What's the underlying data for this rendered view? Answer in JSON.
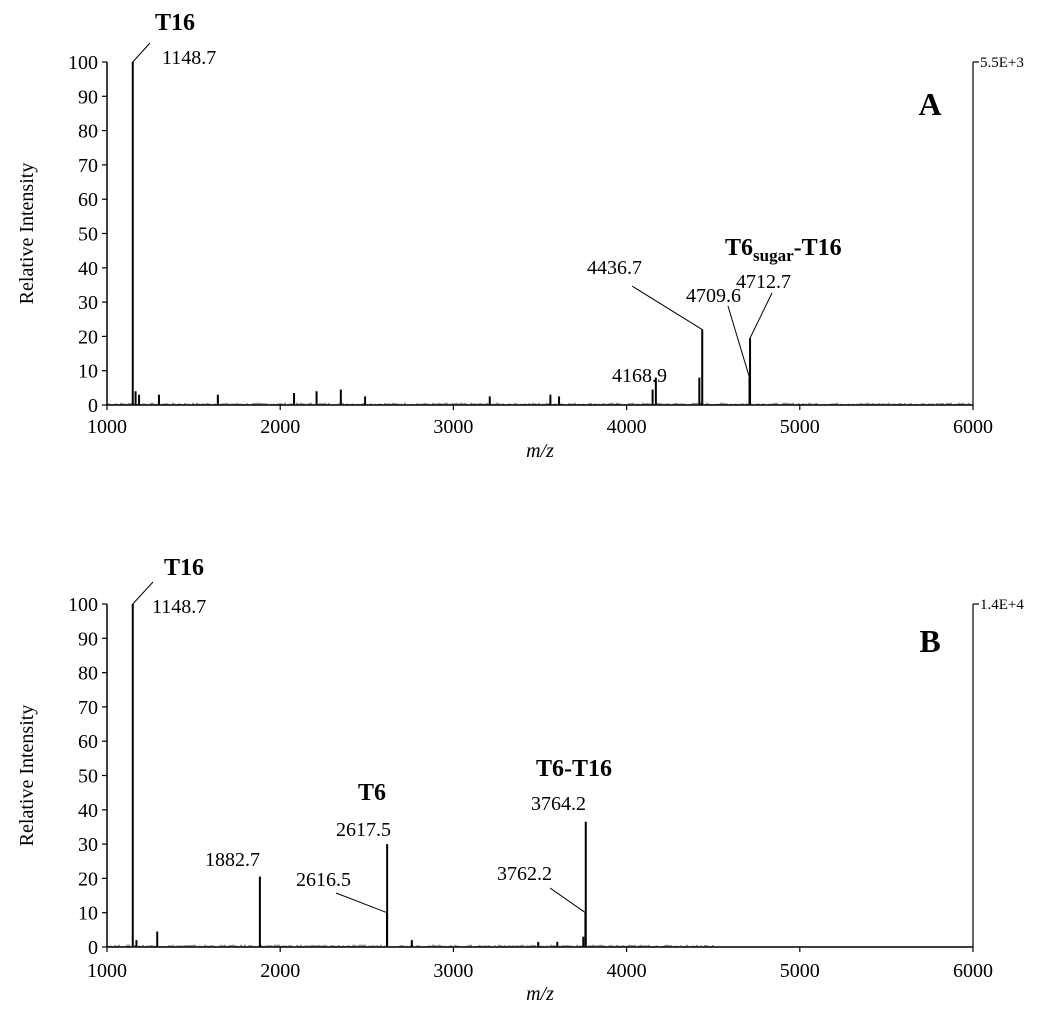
{
  "chart_data": [
    {
      "type": "line",
      "panel_label": "A",
      "xlabel": "m/z",
      "ylabel": "Relative Intensity",
      "xlim": [
        1000,
        6000
      ],
      "ylim": [
        0,
        100
      ],
      "x_ticks": [
        "1000",
        "2000",
        "3000",
        "4000",
        "5000",
        "6000"
      ],
      "y_ticks": [
        "0",
        "10",
        "20",
        "30",
        "40",
        "50",
        "60",
        "70",
        "80",
        "90",
        "100"
      ],
      "right_scale_label": "5.5E+3",
      "series": [
        {
          "peaks": [
            {
              "x": 1148.7,
              "y": 100
            },
            {
              "x": 1165,
              "y": 4
            },
            {
              "x": 1185,
              "y": 3
            },
            {
              "x": 1300,
              "y": 3
            },
            {
              "x": 1640,
              "y": 3
            },
            {
              "x": 2080,
              "y": 3.5
            },
            {
              "x": 2210,
              "y": 4
            },
            {
              "x": 2350,
              "y": 4.5
            },
            {
              "x": 2490,
              "y": 2.5
            },
            {
              "x": 3210,
              "y": 2.5
            },
            {
              "x": 3560,
              "y": 3
            },
            {
              "x": 3610,
              "y": 2.5
            },
            {
              "x": 4150,
              "y": 4.5
            },
            {
              "x": 4168.9,
              "y": 8
            },
            {
              "x": 4420,
              "y": 8
            },
            {
              "x": 4436.7,
              "y": 22
            },
            {
              "x": 4709.6,
              "y": 8
            },
            {
              "x": 4712.7,
              "y": 19.5
            }
          ],
          "end_x": 6000
        }
      ],
      "annotations": [
        {
          "text": "1148.7",
          "x": 1148.7,
          "y": 100
        },
        {
          "text": "4168.9",
          "x": 4168.9,
          "y": 8
        },
        {
          "text": "4436.7",
          "x": 4436.7,
          "y": 22
        },
        {
          "text": "4709.6",
          "x": 4709.6,
          "y": 8
        },
        {
          "text": "4712.7",
          "x": 4712.7,
          "y": 19.5
        }
      ],
      "bold_labels": [
        {
          "main": "T16",
          "sub": ""
        },
        {
          "main": "T6",
          "sub": "sugar",
          "suffix": "-T16"
        }
      ]
    },
    {
      "type": "line",
      "panel_label": "B",
      "xlabel": "m/z",
      "ylabel": "Relative Intensity",
      "xlim": [
        1000,
        6000
      ],
      "ylim": [
        0,
        100
      ],
      "x_ticks": [
        "1000",
        "2000",
        "3000",
        "4000",
        "5000",
        "6000"
      ],
      "y_ticks": [
        "0",
        "10",
        "20",
        "30",
        "40",
        "50",
        "60",
        "70",
        "80",
        "90",
        "100"
      ],
      "right_scale_label": "1.4E+4",
      "series": [
        {
          "peaks": [
            {
              "x": 1148.7,
              "y": 100
            },
            {
              "x": 1170,
              "y": 2
            },
            {
              "x": 1290,
              "y": 4.5
            },
            {
              "x": 1882.7,
              "y": 20.5
            },
            {
              "x": 2616.5,
              "y": 10
            },
            {
              "x": 2617.5,
              "y": 30
            },
            {
              "x": 2760,
              "y": 2
            },
            {
              "x": 3490,
              "y": 1.5
            },
            {
              "x": 3600,
              "y": 1.5
            },
            {
              "x": 3750,
              "y": 3
            },
            {
              "x": 3762.2,
              "y": 10
            },
            {
              "x": 3764.2,
              "y": 36.5
            }
          ],
          "end_x": 4500
        }
      ],
      "annotations": [
        {
          "text": "1148.7",
          "x": 1148.7,
          "y": 100
        },
        {
          "text": "1882.7",
          "x": 1882.7,
          "y": 20.5
        },
        {
          "text": "2617.5",
          "x": 2617.5,
          "y": 30
        },
        {
          "text": "2616.5",
          "x": 2616.5,
          "y": 10
        },
        {
          "text": "3764.2",
          "x": 3764.2,
          "y": 36.5
        },
        {
          "text": "3762.2",
          "x": 3762.2,
          "y": 10
        }
      ],
      "bold_labels": [
        {
          "main": "T16",
          "sub": ""
        },
        {
          "main": "T6",
          "sub": ""
        },
        {
          "main": "T6-T16",
          "sub": ""
        }
      ]
    }
  ]
}
